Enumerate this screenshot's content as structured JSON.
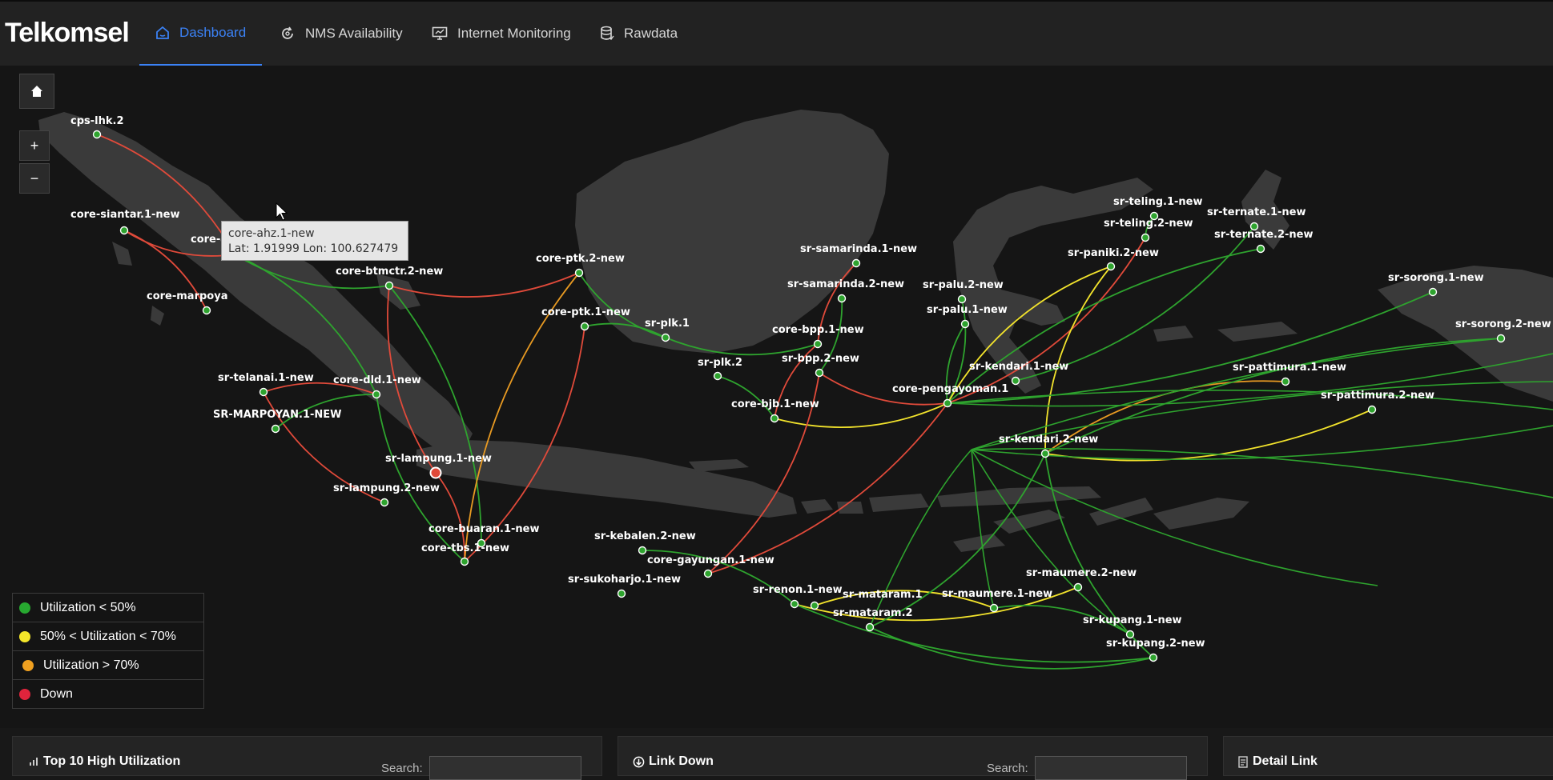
{
  "brand": "Telkomsel",
  "nav": [
    {
      "label": "Dashboard",
      "icon": "home-icon",
      "active": true
    },
    {
      "label": "NMS Availability",
      "icon": "refresh-icon",
      "active": false
    },
    {
      "label": "Internet Monitoring",
      "icon": "monitor-icon",
      "active": false
    },
    {
      "label": "Rawdata",
      "icon": "database-icon",
      "active": false
    }
  ],
  "map_controls": {
    "home": "home-icon",
    "zoom_in": "+",
    "zoom_out": "−"
  },
  "colors": {
    "green": "#27a830",
    "yellow": "#f5e72a",
    "orange": "#f0a020",
    "red": "#e5483a"
  },
  "tooltip": {
    "title": "core-ahz.1-new",
    "coords": "Lat: 1.91999 Lon: 100.627479"
  },
  "nodes": [
    {
      "id": "cps-lhk.2",
      "label": "cps-lhk.2"
    },
    {
      "id": "core-siantar.1-new",
      "label": "core-siantar.1-new"
    },
    {
      "id": "core-ahz.1-new",
      "label": "core-ahz.1-new"
    },
    {
      "id": "core-marpoyan",
      "label": "core-marpoya"
    },
    {
      "id": "core-btmctr.2-new",
      "label": "core-btmctr.2-new"
    },
    {
      "id": "sr-telanai.1-new",
      "label": "sr-telanai.1-new"
    },
    {
      "id": "core-dld.1-new",
      "label": "core-dld.1-new"
    },
    {
      "id": "SR-MARPOYAN.1-NEW",
      "label": "SR-MARPOYAN.1-NEW"
    },
    {
      "id": "sr-lampung.1-new",
      "label": "sr-lampung.1-new"
    },
    {
      "id": "sr-lampung.2-new",
      "label": "sr-lampung.2-new"
    },
    {
      "id": "core-buaran.1-new",
      "label": "core-buaran.1-new"
    },
    {
      "id": "core-tbs.1-new",
      "label": "core-tbs.1-new"
    },
    {
      "id": "core-ptk.2-new",
      "label": "core-ptk.2-new"
    },
    {
      "id": "core-ptk.1-new",
      "label": "core-ptk.1-new"
    },
    {
      "id": "sr-plk.1",
      "label": "sr-plk.1"
    },
    {
      "id": "sr-plk.2",
      "label": "sr-plk.2"
    },
    {
      "id": "core-bjb.1-new",
      "label": "core-bjb.1-new"
    },
    {
      "id": "sr-samarinda.1-new",
      "label": "sr-samarinda.1-new"
    },
    {
      "id": "sr-samarinda.2-new",
      "label": "sr-samarinda.2-new"
    },
    {
      "id": "core-bpp.1-new",
      "label": "core-bpp.1-new"
    },
    {
      "id": "sr-bpp.2-new",
      "label": "sr-bpp.2-new"
    },
    {
      "id": "sr-kebalen.2-new",
      "label": "sr-kebalen.2-new"
    },
    {
      "id": "core-gayungan.1-new",
      "label": "core-gayungan.1-new"
    },
    {
      "id": "sr-sukoharjo.1-new",
      "label": "sr-sukoharjo.1-new"
    },
    {
      "id": "sr-renon.1-new",
      "label": "sr-renon.1-new"
    },
    {
      "id": "sr-mataram.1",
      "label": "sr-mataram.1"
    },
    {
      "id": "sr-mataram.2",
      "label": "sr-mataram.2"
    },
    {
      "id": "sr-maumere.1-new",
      "label": "sr-maumere.1-new"
    },
    {
      "id": "sr-maumere.2-new",
      "label": "sr-maumere.2-new"
    },
    {
      "id": "sr-kupang.1-new",
      "label": "sr-kupang.1-new"
    },
    {
      "id": "sr-kupang.2-new",
      "label": "sr-kupang.2-new"
    },
    {
      "id": "sr-palu.2-new",
      "label": "sr-palu.2-new"
    },
    {
      "id": "sr-palu.1-new",
      "label": "sr-palu.1-new"
    },
    {
      "id": "core-pengayoman.1",
      "label": "core-pengayoman.1"
    },
    {
      "id": "sr-kendari.1-new",
      "label": "sr-kendari.1-new"
    },
    {
      "id": "sr-kendari.2-new",
      "label": "sr-kendari.2-new"
    },
    {
      "id": "sr-teling.1-new",
      "label": "sr-teling.1-new"
    },
    {
      "id": "sr-teling.2-new",
      "label": "sr-teling.2-new"
    },
    {
      "id": "sr-paniki.2-new",
      "label": "sr-paniki.2-new"
    },
    {
      "id": "sr-ternate.1-new",
      "label": "sr-ternate.1-new"
    },
    {
      "id": "sr-ternate.2-new",
      "label": "sr-ternate.2-new"
    },
    {
      "id": "sr-sorong.1-new",
      "label": "sr-sorong.1-new"
    },
    {
      "id": "sr-sorong.2-new",
      "label": "sr-sorong.2-new"
    },
    {
      "id": "sr-pattimura.1-new",
      "label": "sr-pattimura.1-new"
    },
    {
      "id": "sr-pattimura.2-new",
      "label": "sr-pattimura.2-new"
    }
  ],
  "links": [
    {
      "from": "cps-lhk.2",
      "to": "core-ahz.1-new",
      "status": "red"
    },
    {
      "from": "core-siantar.1-new",
      "to": "core-ahz.1-new",
      "status": "red"
    },
    {
      "from": "core-siantar.1-new",
      "to": "core-marpoyan",
      "status": "red"
    },
    {
      "from": "core-ahz.1-new",
      "to": "core-btmctr.2-new",
      "status": "green"
    },
    {
      "from": "core-ahz.1-new",
      "to": "core-dld.1-new",
      "status": "green"
    },
    {
      "from": "core-btmctr.2-new",
      "to": "core-ptk.2-new",
      "status": "red"
    },
    {
      "from": "core-btmctr.2-new",
      "to": "core-buaran.1-new",
      "status": "green"
    },
    {
      "from": "core-btmctr.2-new",
      "to": "sr-lampung.1-new",
      "status": "red"
    },
    {
      "from": "sr-telanai.1-new",
      "to": "core-dld.1-new",
      "status": "red"
    },
    {
      "from": "sr-telanai.1-new",
      "to": "sr-lampung.2-new",
      "status": "red"
    },
    {
      "from": "SR-MARPOYAN.1-NEW",
      "to": "core-dld.1-new",
      "status": "green"
    },
    {
      "from": "core-dld.1-new",
      "to": "core-tbs.1-new",
      "status": "green"
    },
    {
      "from": "sr-lampung.1-new",
      "to": "core-tbs.1-new",
      "status": "red"
    },
    {
      "from": "core-ptk.2-new",
      "to": "core-tbs.1-new",
      "status": "orange"
    },
    {
      "from": "core-ptk.1-new",
      "to": "core-tbs.1-new",
      "status": "red"
    },
    {
      "from": "core-ptk.2-new",
      "to": "sr-plk.1",
      "status": "green"
    },
    {
      "from": "core-ptk.1-new",
      "to": "sr-plk.1",
      "status": "green"
    },
    {
      "from": "sr-plk.1",
      "to": "core-bpp.1-new",
      "status": "green"
    },
    {
      "from": "sr-plk.2",
      "to": "core-bjb.1-new",
      "status": "green"
    },
    {
      "from": "core-bjb.1-new",
      "to": "core-pengayoman.1",
      "status": "yellow"
    },
    {
      "from": "core-bjb.1-new",
      "to": "core-bpp.1-new",
      "status": "red"
    },
    {
      "from": "sr-samarinda.1-new",
      "to": "core-bpp.1-new",
      "status": "red"
    },
    {
      "from": "sr-samarinda.2-new",
      "to": "sr-bpp.2-new",
      "status": "green"
    },
    {
      "from": "sr-bpp.2-new",
      "to": "core-pengayoman.1",
      "status": "red"
    },
    {
      "from": "sr-bpp.2-new",
      "to": "core-gayungan.1-new",
      "status": "red"
    },
    {
      "from": "core-gayungan.1-new",
      "to": "core-pengayoman.1",
      "status": "red"
    },
    {
      "from": "sr-kebalen.2-new",
      "to": "sr-renon.1-new",
      "status": "green"
    },
    {
      "from": "sr-renon.1-new",
      "to": "sr-maumere.2-new",
      "status": "yellow"
    },
    {
      "from": "sr-mataram.1",
      "to": "sr-maumere.1-new",
      "status": "yellow"
    },
    {
      "from": "sr-mataram.2",
      "to": "sr-kupang.2-new",
      "status": "green"
    },
    {
      "from": "sr-maumere.1-new",
      "to": "sr-kupang.1-new",
      "status": "green"
    },
    {
      "from": "sr-renon.1-new",
      "to": "sr-kupang.2-new",
      "status": "green"
    },
    {
      "from": "sr-palu.2-new",
      "to": "core-pengayoman.1",
      "status": "green"
    },
    {
      "from": "sr-palu.1-new",
      "to": "core-pengayoman.1",
      "status": "green"
    },
    {
      "from": "core-pengayoman.1",
      "to": "sr-paniki.2-new",
      "status": "yellow"
    },
    {
      "from": "core-pengayoman.1",
      "to": "sr-teling.2-new",
      "status": "red"
    },
    {
      "from": "core-pengayoman.1",
      "to": "sr-ternate.2-new",
      "status": "green"
    },
    {
      "from": "core-pengayoman.1",
      "to": "sr-sorong.1-new",
      "status": "green"
    },
    {
      "from": "sr-kendari.2-new",
      "to": "sr-pattimura.1-new",
      "status": "orange"
    },
    {
      "from": "sr-kendari.2-new",
      "to": "sr-pattimura.2-new",
      "status": "yellow"
    },
    {
      "from": "sr-kendari.2-new",
      "to": "sr-paniki.2-new",
      "status": "yellow"
    },
    {
      "from": "sr-kendari.1-new",
      "to": "sr-ternate.1-new",
      "status": "green"
    },
    {
      "from": "sr-kendari.2-new",
      "to": "sr-sorong.2-new",
      "status": "green"
    },
    {
      "from": "sr-kendari.2-new",
      "to": "sr-kupang.2-new",
      "status": "green"
    },
    {
      "from": "sr-kendari.2-new",
      "to": "sr-mataram.2",
      "status": "green"
    },
    {
      "from": "sr-teling.1-new",
      "to": "sr-teling.2-new",
      "status": "green"
    }
  ],
  "legend": [
    {
      "label": "Utilization < 50%",
      "color": "#27a830"
    },
    {
      "label": "50% < Utilization < 70%",
      "color": "#f5e72a"
    },
    {
      "label": "Utilization > 70%",
      "color": "#f0a020"
    },
    {
      "label": "Down",
      "color": "#e0243c"
    }
  ],
  "panels": [
    {
      "title": "Top 10 High Utilization",
      "icon": "bar-chart-icon",
      "search_label": "Search:"
    },
    {
      "title": "Link Down",
      "icon": "arrow-circle-icon",
      "search_label": "Search:"
    },
    {
      "title": "Detail Link",
      "icon": "document-icon"
    }
  ]
}
